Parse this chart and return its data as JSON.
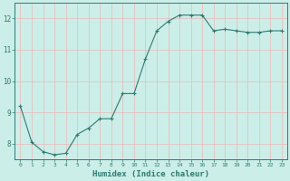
{
  "x": [
    0,
    1,
    2,
    3,
    4,
    5,
    6,
    7,
    8,
    9,
    10,
    11,
    12,
    13,
    14,
    15,
    16,
    17,
    18,
    19,
    20,
    21,
    22,
    23
  ],
  "y": [
    9.2,
    8.05,
    7.75,
    7.65,
    7.7,
    8.3,
    8.5,
    8.8,
    8.8,
    9.6,
    9.6,
    10.7,
    11.6,
    11.9,
    12.1,
    12.1,
    12.1,
    11.6,
    11.65,
    11.6,
    11.55,
    11.55,
    11.6,
    11.6
  ],
  "xlabel": "Humidex (Indice chaleur)",
  "bg_color": "#cceee8",
  "line_color": "#2d7a70",
  "marker_color": "#2d7a70",
  "grid_color": "#e8b8b8",
  "axis_color": "#2d7a70",
  "tick_label_color": "#2d7a70",
  "xlabel_color": "#2d7a70",
  "ylim": [
    7.5,
    12.5
  ],
  "xlim": [
    -0.5,
    23.5
  ],
  "yticks": [
    8,
    9,
    10,
    11,
    12
  ],
  "xticks": [
    0,
    1,
    2,
    3,
    4,
    5,
    6,
    7,
    8,
    9,
    10,
    11,
    12,
    13,
    14,
    15,
    16,
    17,
    18,
    19,
    20,
    21,
    22,
    23
  ]
}
